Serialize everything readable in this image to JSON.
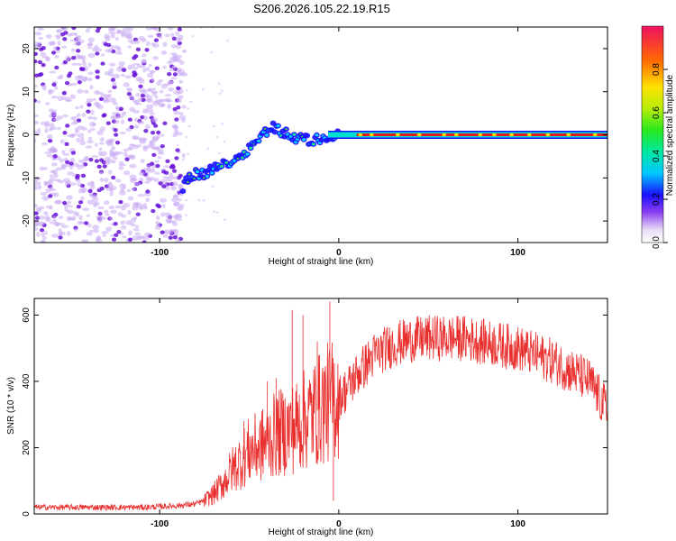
{
  "figure": {
    "title": "S206.2026.105.22.19.R15"
  },
  "colors": {
    "background": "#ffffff",
    "snr_line": "#e8302f",
    "waterfall_line": "#e31a1c",
    "scatter_strong": "#6a14d8",
    "scatter_light": "#c9a9f2"
  },
  "chart_data": [
    {
      "id": "spectrogram",
      "type": "heatmap",
      "title": "S206.2026.105.22.19.R15",
      "xlabel": "Height of straight line (km)",
      "ylabel": "Frequency (Hz)",
      "xlim": [
        -170,
        150
      ],
      "ylim": [
        -25,
        25
      ],
      "x_ticks": [
        -100,
        0,
        100
      ],
      "x_tick_labels": [
        "-100",
        "0",
        "100"
      ],
      "y_ticks": [
        -20,
        -10,
        0,
        10,
        20
      ],
      "y_tick_labels": [
        "-20",
        "-10",
        "0",
        "10",
        "20"
      ],
      "noise_region_km": [
        -170,
        -92
      ],
      "signal_track": [
        {
          "x": -87,
          "f": -12
        },
        {
          "x": -84,
          "f": -10
        },
        {
          "x": -80,
          "f": -9
        },
        {
          "x": -75,
          "f": -9
        },
        {
          "x": -70,
          "f": -8
        },
        {
          "x": -65,
          "f": -7
        },
        {
          "x": -60,
          "f": -6
        },
        {
          "x": -55,
          "f": -5
        },
        {
          "x": -50,
          "f": -3
        },
        {
          "x": -45,
          "f": -1
        },
        {
          "x": -40,
          "f": 1
        },
        {
          "x": -37,
          "f": 2
        },
        {
          "x": -33,
          "f": 1
        },
        {
          "x": -28,
          "f": 0
        },
        {
          "x": -24,
          "f": -1
        },
        {
          "x": -20,
          "f": -0.5
        },
        {
          "x": -16,
          "f": -1.5
        },
        {
          "x": -12,
          "f": -1
        },
        {
          "x": -8,
          "f": -0.5
        },
        {
          "x": -4,
          "f": -1
        },
        {
          "x": 0,
          "f": 0
        },
        {
          "x": 10,
          "f": 0
        },
        {
          "x": 50,
          "f": 0
        },
        {
          "x": 100,
          "f": 0
        },
        {
          "x": 150,
          "f": 0
        }
      ],
      "colorbar": {
        "label": "Normalized spectral amplitude",
        "range": [
          0,
          1
        ],
        "ticks": [
          0.0,
          0.2,
          0.4,
          0.6,
          0.8
        ],
        "tick_labels": [
          "0.0",
          "0.2",
          "0.4",
          "0.6",
          "0.8"
        ]
      }
    },
    {
      "id": "snr",
      "type": "line",
      "xlabel": "Height of straight line (km)",
      "ylabel": "SNR (10 * v/v)",
      "xlim": [
        -170,
        150
      ],
      "ylim": [
        0,
        650
      ],
      "x_ticks": [
        -100,
        0,
        100
      ],
      "x_tick_labels": [
        "-100",
        "0",
        "100"
      ],
      "y_ticks": [
        0,
        200,
        400,
        600
      ],
      "y_tick_labels": [
        "0",
        "200",
        "400",
        "600"
      ],
      "series": [
        {
          "name": "SNR",
          "x": [
            -170,
            -160,
            -150,
            -140,
            -130,
            -120,
            -110,
            -100,
            -90,
            -80,
            -75,
            -70,
            -65,
            -60,
            -55,
            -50,
            -45,
            -40,
            -35,
            -30,
            -25,
            -20,
            -15,
            -10,
            -5,
            0,
            5,
            10,
            15,
            20,
            30,
            40,
            50,
            60,
            70,
            80,
            90,
            100,
            110,
            120,
            130,
            140,
            150
          ],
          "y": [
            20,
            20,
            20,
            20,
            20,
            20,
            20,
            22,
            25,
            30,
            40,
            60,
            90,
            130,
            160,
            190,
            200,
            220,
            240,
            250,
            260,
            280,
            300,
            320,
            340,
            350,
            380,
            420,
            450,
            480,
            510,
            525,
            530,
            530,
            530,
            520,
            510,
            500,
            480,
            460,
            430,
            400,
            310
          ]
        }
      ],
      "spikes": [
        {
          "x": -53,
          "y": 280
        },
        {
          "x": -40,
          "y": 400
        },
        {
          "x": -35,
          "y": 410
        },
        {
          "x": -26,
          "y": 615
        },
        {
          "x": -20,
          "y": 600
        },
        {
          "x": -12,
          "y": 520
        },
        {
          "x": -8,
          "y": 340
        },
        {
          "x": -5,
          "y": 640
        },
        {
          "x": -3,
          "y": 40
        }
      ]
    }
  ]
}
